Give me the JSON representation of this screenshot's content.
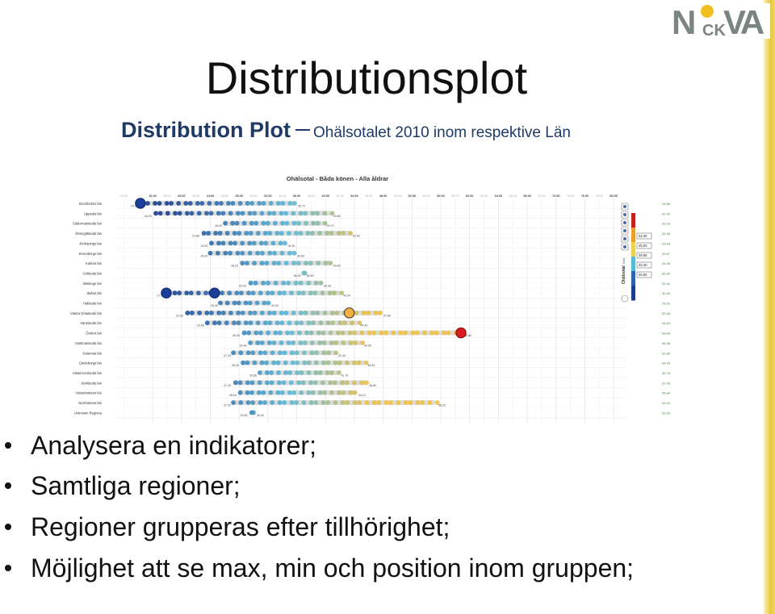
{
  "slide": {
    "title": "Distributionsplot",
    "subtitle_main": "Distribution Plot",
    "subtitle_rest": "Ohälsotalet 2010 inom respektive Län",
    "logo_text": "NCKVA"
  },
  "bullets": [
    "Analysera en indikatorer;",
    "Samtliga regioner;",
    "Regioner grupperas efter tillhörighet;",
    "Möjlighet att se max, min och position inom gruppen;"
  ],
  "colors": {
    "title": "#111111",
    "subtitle": "#1f3a66",
    "bar": "#dcdcdc",
    "dot_low": "#1a3d8f",
    "dot_mid": "#58b8d8",
    "dot_high": "#f0c040",
    "max_dot": "#d81e1e",
    "value_green": "#3a8a3a"
  },
  "chart_data": {
    "type": "scatter",
    "title": "Ohälsotal - Båda könen - Alla åldrar",
    "x_ticks_major": [
      "16.00",
      "20.00",
      "24.00",
      "28.00",
      "32.00",
      "36.00",
      "40.00",
      "44.00",
      "48.00",
      "52.00",
      "56.00",
      "60.00",
      "64.00",
      "68.00",
      "72.00",
      "76.00",
      "80.00"
    ],
    "x_ticks_minor": [
      "12.00",
      "18.00",
      "22.00",
      "26.00",
      "30.00",
      "34.00",
      "38.00",
      "42.00",
      "46.00",
      "50.00",
      "54.00",
      "58.00",
      "62.00",
      "66.00",
      "70.00",
      "74.00",
      "78.00"
    ],
    "xlim": [
      10.5,
      82
    ],
    "regions": [
      {
        "name": "Stockholms län",
        "min": 14.3,
        "max": 35.7,
        "min_label": "14.30",
        "max_label": "35.70",
        "avg": "24.86"
      },
      {
        "name": "Uppsala län",
        "min": 16.2,
        "max": 40.6,
        "min_label": "16.20",
        "max_label": "40.60",
        "avg": "31.50"
      },
      {
        "name": "Södermanlands län",
        "min": 26.0,
        "max": 39.7,
        "min_label": "26.00",
        "max_label": "39.70",
        "avg": "33.33"
      },
      {
        "name": "Östergötlands län",
        "min": 22.8,
        "max": 43.3,
        "min_label": "22.80",
        "max_label": "43.30",
        "avg": "32.48"
      },
      {
        "name": "Jönköpings län",
        "min": 24.0,
        "max": 34.3,
        "min_label": "24.00",
        "max_label": "34.30",
        "avg": "29.45"
      },
      {
        "name": "Kronobergs län",
        "min": 24.0,
        "max": 35.6,
        "min_label": "24.00",
        "max_label": "35.60",
        "avg": "30.67"
      },
      {
        "name": "Kalmar län",
        "min": 28.2,
        "max": 40.6,
        "min_label": "28.20",
        "max_label": "40.60",
        "avg": "34.36"
      },
      {
        "name": "Gotlands län",
        "min": 36.9,
        "max": 36.9,
        "min_label": "36.90",
        "max_label": "36.90",
        "avg": "36.90"
      },
      {
        "name": "Blekinge län",
        "min": 29.3,
        "max": 39.3,
        "min_label": "29.30",
        "max_label": "39.30",
        "avg": "33.44"
      },
      {
        "name": "Skåne län",
        "min": 17.9,
        "max": 42.0,
        "min_label": "17.90",
        "max_label": "42.00",
        "avg": "30.94"
      },
      {
        "name": "Hallands län",
        "min": 25.4,
        "max": 32.0,
        "min_label": "25.40",
        "max_label": "32.00",
        "avg": "28.92"
      },
      {
        "name": "Västra Götalands län",
        "min": 20.6,
        "max": 47.6,
        "min_label": "20.60",
        "max_label": "47.60",
        "avg": "33.58"
      },
      {
        "name": "Värmlands län",
        "min": 23.5,
        "max": 44.4,
        "min_label": "23.50",
        "max_label": "44.40",
        "avg": "34.69"
      },
      {
        "name": "Örebro län",
        "min": 28.4,
        "max": 58.8,
        "min_label": "28.40",
        "max_label": "58.80",
        "avg": "36.66"
      },
      {
        "name": "Västmanlands län",
        "min": 29.4,
        "max": 44.9,
        "min_label": "29.40",
        "max_label": "44.90",
        "avg": "36.48"
      },
      {
        "name": "Dalarnas län",
        "min": 27.2,
        "max": 41.3,
        "min_label": "27.20",
        "max_label": "41.30",
        "avg": "32.86"
      },
      {
        "name": "Gävleborgs län",
        "min": 28.3,
        "max": 45.4,
        "min_label": "28.30",
        "max_label": "45.40",
        "avg": "36.43"
      },
      {
        "name": "Västernorrlands län",
        "min": 30.8,
        "max": 41.7,
        "min_label": "30.80",
        "max_label": "41.70",
        "avg": "35.76"
      },
      {
        "name": "Jämtlands län",
        "min": 27.2,
        "max": 45.6,
        "min_label": "27.20",
        "max_label": "45.60",
        "avg": "37.06"
      },
      {
        "name": "Västerbottens län",
        "min": 28.0,
        "max": 44.1,
        "min_label": "28.00",
        "max_label": "44.10",
        "avg": "35.84"
      },
      {
        "name": "Norrbottens län",
        "min": 27.2,
        "max": 55.2,
        "min_label": "27.20",
        "max_label": "55.20",
        "avg": "39.00"
      },
      {
        "name": "Unknown Regions",
        "min": 29.5,
        "max": 30.0,
        "min_label": "29.50",
        "max_label": "30.00",
        "avg": "29.50"
      }
    ],
    "highlight_points": [
      {
        "region": "Stockholms län",
        "x": 14.3,
        "kind": "blue-large"
      },
      {
        "region": "Skåne län",
        "x": 17.9,
        "kind": "blue-large"
      },
      {
        "region": "Skåne län",
        "x": 24.6,
        "kind": "blue-large"
      },
      {
        "region": "Västra Götalands län",
        "x": 43.3,
        "kind": "orange-ring"
      },
      {
        "region": "Örebro län",
        "x": 58.8,
        "kind": "red-large"
      }
    ],
    "legend_values": [
      "54.30",
      "45.00",
      "39.60",
      "33.40",
      "25.50"
    ],
    "legend_label": "Ohälsotal",
    "legend_sublabel": "Båd"
  }
}
